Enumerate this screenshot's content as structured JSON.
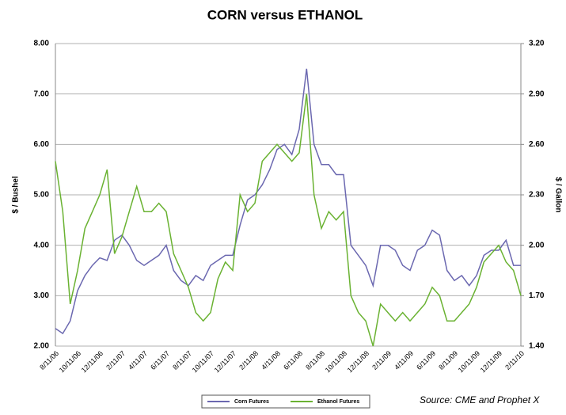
{
  "chart_data": {
    "type": "line",
    "title": "CORN versus ETHANOL",
    "y_label": "$ / Bushel",
    "y2_label": "$ / Gallon",
    "source": "Source: CME and Prophet X",
    "categories": [
      "8/11/06",
      null,
      null,
      "10/11/06",
      null,
      null,
      "12/11/06",
      null,
      null,
      "2/11/07",
      null,
      null,
      "4/11/07",
      null,
      null,
      "6/11/07",
      null,
      null,
      "8/11/07",
      null,
      null,
      "10/11/07",
      null,
      null,
      "12/11/07",
      null,
      null,
      "2/11/08",
      null,
      null,
      "4/11/08",
      null,
      null,
      "6/11/08",
      null,
      null,
      "8/11/08",
      null,
      null,
      "10/11/08",
      null,
      null,
      "12/11/08",
      null,
      null,
      "2/11/09",
      null,
      null,
      "4/11/09",
      null,
      null,
      "6/11/09",
      null,
      null,
      "8/11/09",
      null,
      null,
      "10/11/09",
      null,
      null,
      "12/11/09",
      null,
      null,
      "2/11/10"
    ],
    "series": [
      {
        "name": "Corn Futures",
        "color": "#6b68b0",
        "values": [
          2.35,
          2.25,
          2.5,
          3.1,
          3.4,
          3.6,
          3.75,
          3.7,
          4.1,
          4.2,
          4.0,
          3.7,
          3.6,
          3.7,
          3.8,
          4.0,
          3.5,
          3.3,
          3.2,
          3.4,
          3.3,
          3.6,
          3.7,
          3.8,
          3.8,
          4.4,
          4.9,
          5.0,
          5.2,
          5.5,
          5.9,
          6.0,
          5.8,
          6.3,
          7.5,
          6.0,
          5.6,
          5.6,
          5.4,
          5.4,
          4.0,
          3.8,
          3.6,
          3.2,
          4.0,
          4.0,
          3.9,
          3.6,
          3.5,
          3.9,
          4.0,
          4.3,
          4.2,
          3.5,
          3.3,
          3.4,
          3.2,
          3.4,
          3.8,
          3.9,
          3.9,
          4.1,
          3.6,
          3.6
        ]
      },
      {
        "name": "Ethanol Futures",
        "color": "#6ab232",
        "axis": "y2",
        "values": [
          2.5,
          2.2,
          1.65,
          1.85,
          2.1,
          2.2,
          2.3,
          2.45,
          1.95,
          2.05,
          2.2,
          2.35,
          2.2,
          2.2,
          2.25,
          2.2,
          1.95,
          1.85,
          1.75,
          1.6,
          1.55,
          1.6,
          1.8,
          1.9,
          1.85,
          2.3,
          2.2,
          2.25,
          2.5,
          2.55,
          2.6,
          2.55,
          2.5,
          2.55,
          2.9,
          2.3,
          2.1,
          2.2,
          2.15,
          2.2,
          1.7,
          1.6,
          1.55,
          1.4,
          1.65,
          1.6,
          1.55,
          1.6,
          1.55,
          1.6,
          1.65,
          1.75,
          1.7,
          1.55,
          1.55,
          1.6,
          1.65,
          1.75,
          1.9,
          1.95,
          2.0,
          1.9,
          1.85,
          1.7
        ]
      }
    ],
    "ylim": [
      2,
      8
    ],
    "yticks": [
      {
        "value": 2,
        "label": "2.00"
      },
      {
        "value": 3,
        "label": "3.00"
      },
      {
        "value": 4,
        "label": "4.00"
      },
      {
        "value": 5,
        "label": "5.00"
      },
      {
        "value": 6,
        "label": "6.00"
      },
      {
        "value": 7,
        "label": "7.00"
      },
      {
        "value": 8,
        "label": "8.00"
      }
    ],
    "y2lim": [
      1.4,
      3.2
    ],
    "y2ticks": [
      {
        "value": 1.4,
        "label": "1.40"
      },
      {
        "value": 1.7,
        "label": "1.70"
      },
      {
        "value": 2,
        "label": "2.00"
      },
      {
        "value": 2.3,
        "label": "2.30"
      },
      {
        "value": 2.6,
        "label": "2.60"
      },
      {
        "value": 2.9,
        "label": "2.90"
      },
      {
        "value": 3.2,
        "label": "3.20"
      }
    ],
    "grid": true,
    "legend": "bottom"
  }
}
